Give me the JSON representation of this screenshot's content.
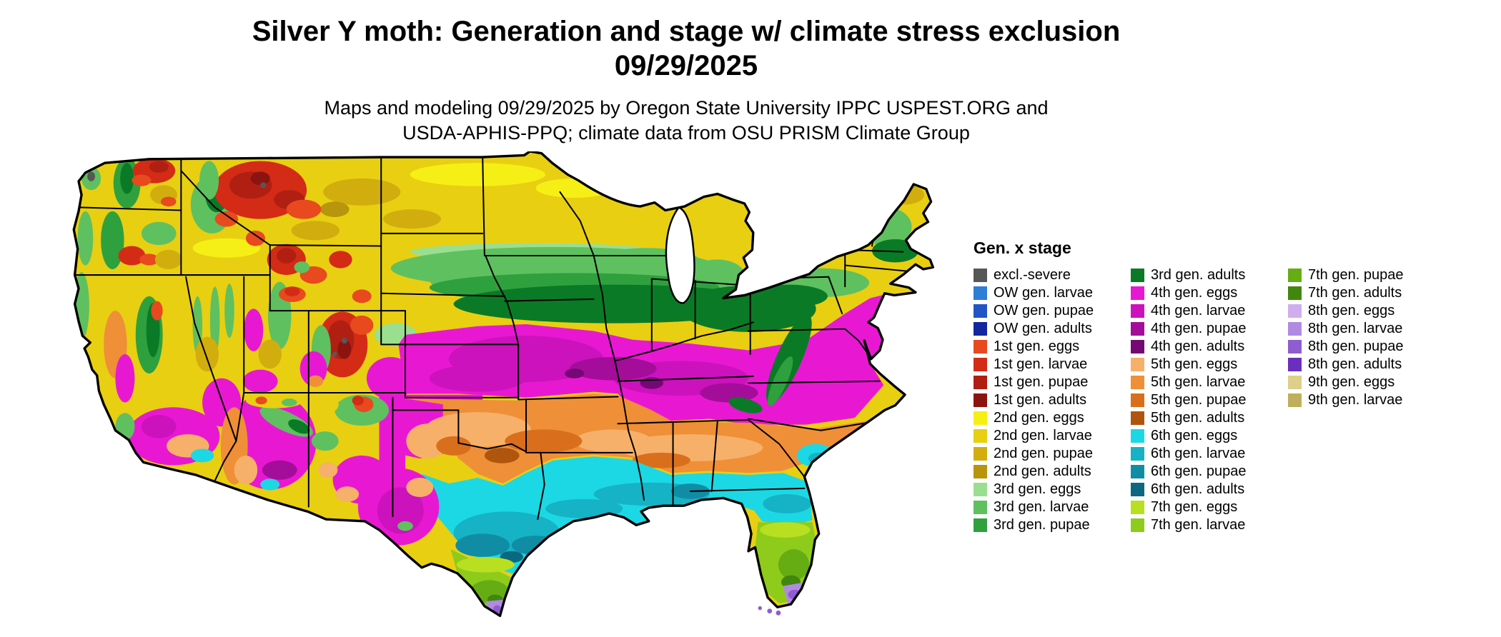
{
  "header": {
    "title_line1": "Silver Y moth: Generation and stage w/ climate stress exclusion",
    "title_line2": "09/29/2025",
    "subtitle_line1": "Maps and modeling 09/29/2025 by Oregon State University IPPC USPEST.ORG and",
    "subtitle_line2": "USDA-APHIS-PPQ; climate data from OSU PRISM Climate Group"
  },
  "legend": {
    "title": "Gen. x stage",
    "columns": [
      [
        {
          "key": "excl_severe",
          "label": "excl.-severe",
          "color": "#575757"
        },
        {
          "key": "ow_larvae",
          "label": "OW gen. larvae",
          "color": "#2e7ed6"
        },
        {
          "key": "ow_pupae",
          "label": "OW gen. pupae",
          "color": "#2255c4"
        },
        {
          "key": "ow_adults",
          "label": "OW gen. adults",
          "color": "#10279e"
        },
        {
          "key": "g1_eggs",
          "label": "1st gen. eggs",
          "color": "#e8491e"
        },
        {
          "key": "g1_larvae",
          "label": "1st gen. larvae",
          "color": "#d32b16"
        },
        {
          "key": "g1_pupae",
          "label": "1st gen. pupae",
          "color": "#b01f12"
        },
        {
          "key": "g1_adults",
          "label": "1st gen. adults",
          "color": "#8c1410"
        },
        {
          "key": "g2_eggs",
          "label": "2nd gen. eggs",
          "color": "#f6ef16"
        },
        {
          "key": "g2_larvae",
          "label": "2nd gen. larvae",
          "color": "#e8cf12"
        },
        {
          "key": "g2_pupae",
          "label": "2nd gen. pupae",
          "color": "#d2ad0e"
        },
        {
          "key": "g2_adults",
          "label": "2nd gen. adults",
          "color": "#b7950c"
        },
        {
          "key": "g3_eggs",
          "label": "3rd gen. eggs",
          "color": "#9ade90"
        },
        {
          "key": "g3_larvae",
          "label": "3rd gen. larvae",
          "color": "#5fc060"
        },
        {
          "key": "g3_pupae",
          "label": "3rd gen. pupae",
          "color": "#2fa03e"
        }
      ],
      [
        {
          "key": "g3_adults",
          "label": "3rd gen. adults",
          "color": "#0b7a26"
        },
        {
          "key": "g4_eggs",
          "label": "4th gen. eggs",
          "color": "#e818d2"
        },
        {
          "key": "g4_larvae",
          "label": "4th gen. larvae",
          "color": "#cc12bc"
        },
        {
          "key": "g4_pupae",
          "label": "4th gen. pupae",
          "color": "#a30d9a"
        },
        {
          "key": "g4_adults",
          "label": "4th gen. adults",
          "color": "#750875"
        },
        {
          "key": "g5_eggs",
          "label": "5th gen. eggs",
          "color": "#f6b06a"
        },
        {
          "key": "g5_larvae",
          "label": "5th gen. larvae",
          "color": "#ef8f38"
        },
        {
          "key": "g5_pupae",
          "label": "5th gen. pupae",
          "color": "#d96f1c"
        },
        {
          "key": "g5_adults",
          "label": "5th gen. adults",
          "color": "#b0550e"
        },
        {
          "key": "g6_eggs",
          "label": "6th gen. eggs",
          "color": "#1cd8e4"
        },
        {
          "key": "g6_larvae",
          "label": "6th gen. larvae",
          "color": "#16b2c6"
        },
        {
          "key": "g6_pupae",
          "label": "6th gen. pupae",
          "color": "#108da4"
        },
        {
          "key": "g6_adults",
          "label": "6th gen. adults",
          "color": "#0a6880"
        },
        {
          "key": "g7_eggs",
          "label": "7th gen. eggs",
          "color": "#b8e020"
        },
        {
          "key": "g7_larvae",
          "label": "7th gen. larvae",
          "color": "#8fcb1b"
        }
      ],
      [
        {
          "key": "g7_pupae",
          "label": "7th gen. pupae",
          "color": "#66ad14"
        },
        {
          "key": "g7_adults",
          "label": "7th gen. adults",
          "color": "#41870e"
        },
        {
          "key": "g8_eggs",
          "label": "8th gen. eggs",
          "color": "#cfaef0"
        },
        {
          "key": "g8_larvae",
          "label": "8th gen. larvae",
          "color": "#b18ae2"
        },
        {
          "key": "g8_pupae",
          "label": "8th gen. pupae",
          "color": "#8f5cd2"
        },
        {
          "key": "g8_adults",
          "label": "8th gen. adults",
          "color": "#6a2fbe"
        },
        {
          "key": "g9_eggs",
          "label": "9th gen. eggs",
          "color": "#ddd08a"
        },
        {
          "key": "g9_larvae",
          "label": "9th gen. larvae",
          "color": "#bfae5c"
        }
      ]
    ]
  },
  "map": {
    "outline_color": "#000000",
    "water_color": "#ffffff",
    "visible_pattern": [
      {
        "area": "Pacific Northwest / Northern Rockies mountains",
        "dominant": "1st gen. eggs-adults (reds) mixed with 3rd gen. greens"
      },
      {
        "area": "Northern plains, Upper Midwest, Maine",
        "dominant": "2nd gen. larvae/pupae (yellows)"
      },
      {
        "area": "Corn Belt IA-IL-IN-OH-PA and Appalachians",
        "dominant": "3rd gen. (greens, darkest 3rd gen. adults)"
      },
      {
        "area": "KS-MO-KY-TN-VA and mid-Atlantic coast",
        "dominant": "4th gen. (magentas)"
      },
      {
        "area": "OK-AR-west TN-north MS/AL/GA-SC",
        "dominant": "5th gen. (oranges)"
      },
      {
        "area": "Central TX, Gulf Coast, north FL",
        "dominant": "6th gen. (cyans/teals)"
      },
      {
        "area": "South TX and central FL",
        "dominant": "7th gen. (yellow-greens)"
      },
      {
        "area": "Lower Rio Grande valley and south FL tip",
        "dominant": "8th gen. (purples)"
      },
      {
        "area": "Southwest deserts (S CA, AZ, NM, W TX)",
        "dominant": "mix of 4th-6th gen. (magenta/orange/cyan)"
      }
    ]
  }
}
